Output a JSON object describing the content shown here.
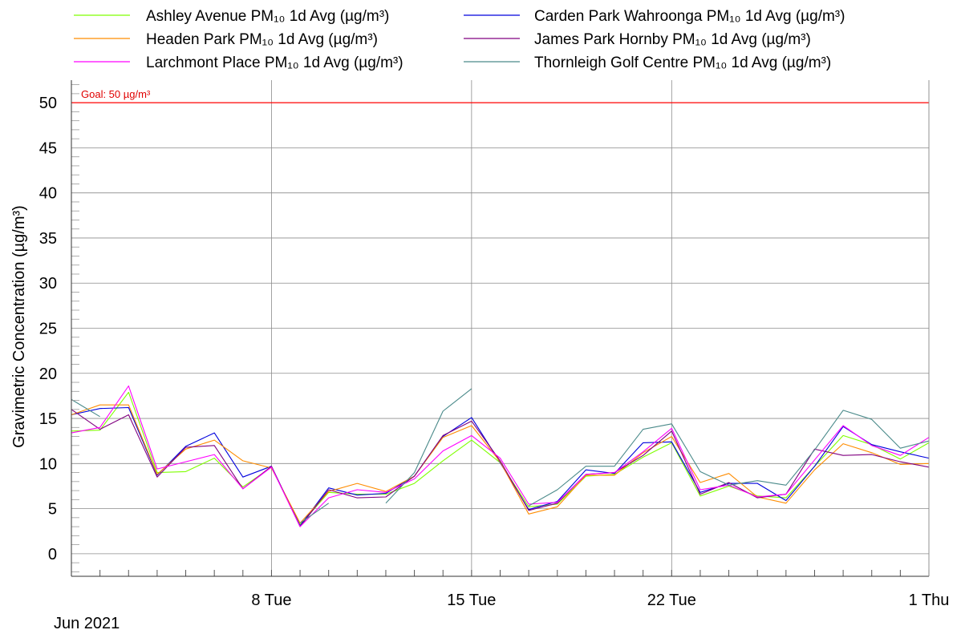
{
  "chart_data": {
    "type": "line",
    "title": "",
    "xlabel": "",
    "ylabel": "Gravimetric Concentration (µg/m³)",
    "ylim": [
      -2.5,
      52.5
    ],
    "yticks": [
      0,
      5,
      10,
      15,
      20,
      25,
      30,
      35,
      40,
      45,
      50
    ],
    "x_range": [
      "2021-06-01",
      "2021-07-01"
    ],
    "x_tick_labels": [
      {
        "date": "2021-06-08",
        "label": "8 Tue"
      },
      {
        "date": "2021-06-15",
        "label": "15 Tue"
      },
      {
        "date": "2021-06-22",
        "label": "22 Tue"
      },
      {
        "date": "2021-07-01",
        "label": "1 Thu"
      }
    ],
    "x_sublabel": "Jun 2021",
    "grid": true,
    "legend_position": "top",
    "goal": {
      "value": 50,
      "label": "Goal: 50 µg/m³",
      "color": "#ff0000"
    },
    "x": [
      "2021-06-01",
      "2021-06-02",
      "2021-06-03",
      "2021-06-04",
      "2021-06-05",
      "2021-06-06",
      "2021-06-07",
      "2021-06-08",
      "2021-06-09",
      "2021-06-10",
      "2021-06-11",
      "2021-06-12",
      "2021-06-13",
      "2021-06-14",
      "2021-06-15",
      "2021-06-16",
      "2021-06-17",
      "2021-06-18",
      "2021-06-19",
      "2021-06-20",
      "2021-06-21",
      "2021-06-22",
      "2021-06-23",
      "2021-06-24",
      "2021-06-25",
      "2021-06-26",
      "2021-06-27",
      "2021-06-28",
      "2021-06-29",
      "2021-06-30",
      "2021-07-01"
    ],
    "series": [
      {
        "name": "Ashley Avenue PM₁₀ 1d Avg (µg/m³)",
        "color": "#7fff00",
        "values": [
          13.6,
          13.7,
          17.9,
          9.0,
          9.1,
          10.6,
          7.4,
          9.6,
          3.2,
          6.8,
          6.6,
          6.6,
          7.8,
          10.3,
          12.6,
          10.1,
          5.2,
          5.5,
          8.6,
          8.8,
          10.7,
          12.3,
          6.4,
          7.5,
          6.4,
          6.2,
          9.7,
          13.1,
          12.1,
          10.5,
          12.3
        ]
      },
      {
        "name": "Carden Park Wahroonga PM₁₀ 1d Avg (µg/m³)",
        "color": "#0000dd",
        "values": [
          15.4,
          16.1,
          16.2,
          8.7,
          11.9,
          13.4,
          8.5,
          9.7,
          3.1,
          7.3,
          6.5,
          6.7,
          8.6,
          13.0,
          15.1,
          10.1,
          4.9,
          5.8,
          9.3,
          8.9,
          12.3,
          12.4,
          6.8,
          7.8,
          7.8,
          5.9,
          9.7,
          14.1,
          12.1,
          11.3,
          10.6
        ]
      },
      {
        "name": "Headen Park PM₁₀ 1d Avg (µg/m³)",
        "color": "#ff8c00",
        "values": [
          15.4,
          16.5,
          16.5,
          8.8,
          11.6,
          12.6,
          10.3,
          9.5,
          3.4,
          6.9,
          7.8,
          6.9,
          8.6,
          12.9,
          14.2,
          10.2,
          4.4,
          5.2,
          8.7,
          8.7,
          11.2,
          13.0,
          7.9,
          8.9,
          6.3,
          5.6,
          9.3,
          12.2,
          11.2,
          9.9,
          10.0
        ]
      },
      {
        "name": "James Park Hornby PM₁₀ 1d Avg (µg/m³)",
        "color": "#800080",
        "values": [
          16.0,
          13.8,
          15.4,
          8.5,
          11.8,
          12.0,
          7.2,
          9.7,
          3.0,
          7.1,
          6.2,
          6.3,
          8.6,
          13.1,
          14.7,
          10.3,
          4.8,
          5.6,
          8.8,
          9.0,
          10.9,
          13.6,
          6.6,
          7.9,
          6.2,
          6.6,
          11.6,
          10.9,
          11.0,
          10.2,
          9.6
        ]
      },
      {
        "name": "Larchmont Place PM₁₀ 1d Avg (µg/m³)",
        "color": "#ff00ff",
        "values": [
          13.4,
          14.0,
          18.6,
          9.4,
          10.2,
          11.0,
          7.2,
          9.6,
          3.0,
          6.2,
          7.1,
          6.8,
          8.3,
          11.4,
          13.1,
          10.6,
          5.5,
          5.7,
          8.8,
          9.0,
          11.3,
          13.9,
          7.1,
          7.6,
          6.3,
          6.6,
          10.4,
          14.2,
          12.0,
          10.9,
          12.9
        ]
      },
      {
        "name": "Thornleigh Golf Centre PM₁₀ 1d Avg (µg/m³)",
        "color": "#4a8a8a",
        "values": [
          17.1,
          15.2,
          null,
          null,
          null,
          null,
          null,
          null,
          3.4,
          5.6,
          null,
          5.6,
          9.0,
          15.8,
          18.3,
          null,
          5.3,
          7.1,
          9.7,
          9.7,
          13.8,
          14.4,
          9.1,
          7.6,
          8.1,
          7.6,
          11.5,
          15.9,
          14.9,
          11.7,
          12.5
        ]
      }
    ]
  }
}
